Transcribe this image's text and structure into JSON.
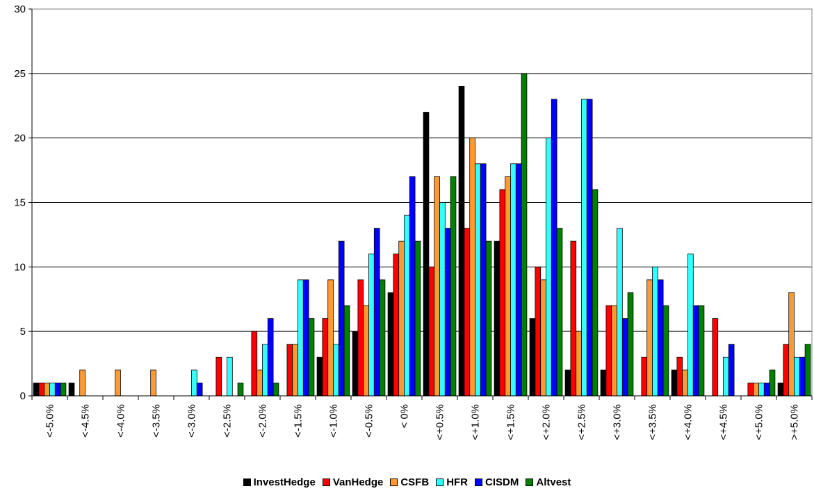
{
  "chart_data": {
    "type": "bar",
    "categories": [
      "<-5.0%",
      "<-4.5%",
      "<-4.0%",
      "<-3.5%",
      "<-3.0%",
      "<-2.5%",
      "<-2.0%",
      "<-1.5%",
      "<-1.0%",
      "<-0.5%",
      "< 0%",
      "<+0.5%",
      "<+1.0%",
      "<+1.5%",
      "<+2.0%",
      "<+2.5%",
      "<+3.0%",
      "<+3.5%",
      "<+4.0%",
      "<+4.5%",
      "<+5.0%",
      ">+5.0%"
    ],
    "ylim": [
      0,
      30
    ],
    "yticks": [
      0,
      5,
      10,
      15,
      20,
      25,
      30
    ],
    "grid": true,
    "legend_position": "bottom",
    "series": [
      {
        "name": "InvestHedge",
        "color": "#000000",
        "values": [
          1,
          1,
          0,
          0,
          0,
          0,
          0,
          0,
          3,
          5,
          8,
          22,
          24,
          12,
          6,
          2,
          2,
          0,
          2,
          0,
          0,
          1
        ]
      },
      {
        "name": "VanHedge",
        "color": "#ff0000",
        "values": [
          1,
          0,
          0,
          0,
          0,
          3,
          5,
          4,
          6,
          9,
          11,
          10,
          13,
          16,
          10,
          12,
          7,
          3,
          3,
          6,
          1,
          4
        ]
      },
      {
        "name": "CSFB",
        "color": "#ff9933",
        "values": [
          1,
          2,
          2,
          2,
          0,
          0,
          2,
          4,
          9,
          7,
          12,
          17,
          20,
          17,
          9,
          5,
          7,
          9,
          2,
          0,
          1,
          8
        ]
      },
      {
        "name": "HFR",
        "color": "#33ffff",
        "values": [
          1,
          0,
          0,
          0,
          2,
          3,
          4,
          9,
          4,
          11,
          14,
          15,
          18,
          18,
          20,
          23,
          13,
          10,
          11,
          3,
          1,
          3
        ]
      },
      {
        "name": "CISDM",
        "color": "#0000ff",
        "values": [
          1,
          0,
          0,
          0,
          1,
          0,
          6,
          9,
          12,
          13,
          17,
          13,
          18,
          18,
          23,
          23,
          6,
          9,
          7,
          4,
          1,
          3
        ]
      },
      {
        "name": "Altvest",
        "color": "#008000",
        "values": [
          1,
          0,
          0,
          0,
          0,
          1,
          1,
          6,
          7,
          9,
          12,
          17,
          12,
          25,
          13,
          16,
          8,
          7,
          7,
          0,
          2,
          4
        ]
      }
    ]
  }
}
